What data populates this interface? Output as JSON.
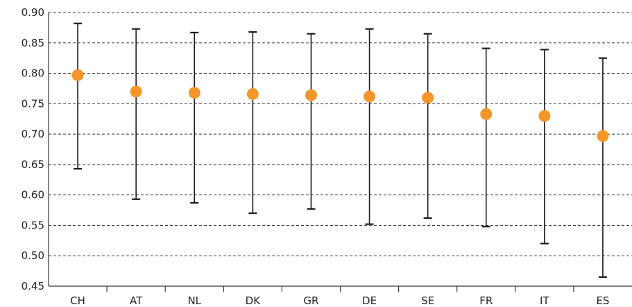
{
  "chart_data": {
    "type": "scatter",
    "title": "",
    "xlabel": "",
    "ylabel": "",
    "ylim": [
      0.45,
      0.9
    ],
    "yticks": [
      0.45,
      0.5,
      0.55,
      0.6,
      0.65,
      0.7,
      0.75,
      0.8,
      0.85,
      0.9
    ],
    "ytick_labels": [
      "0.45",
      "0.50",
      "0.55",
      "0.60",
      "0.65",
      "0.70",
      "0.75",
      "0.80",
      "0.85",
      "0.90"
    ],
    "grid": "horizontal dashed",
    "categories": [
      "CH",
      "AT",
      "NL",
      "DK",
      "GR",
      "DE",
      "SE",
      "FR",
      "IT",
      "ES"
    ],
    "values": [
      0.797,
      0.77,
      0.768,
      0.766,
      0.764,
      0.762,
      0.76,
      0.733,
      0.73,
      0.697
    ],
    "lower": [
      0.643,
      0.593,
      0.587,
      0.57,
      0.577,
      0.552,
      0.562,
      0.548,
      0.52,
      0.465
    ],
    "upper": [
      0.882,
      0.873,
      0.867,
      0.868,
      0.865,
      0.873,
      0.865,
      0.841,
      0.839,
      0.825
    ],
    "colors": {
      "point": "#f5962a",
      "error_bar": "#1a1a1a",
      "grid": "#333333",
      "axis": "#333333"
    }
  }
}
